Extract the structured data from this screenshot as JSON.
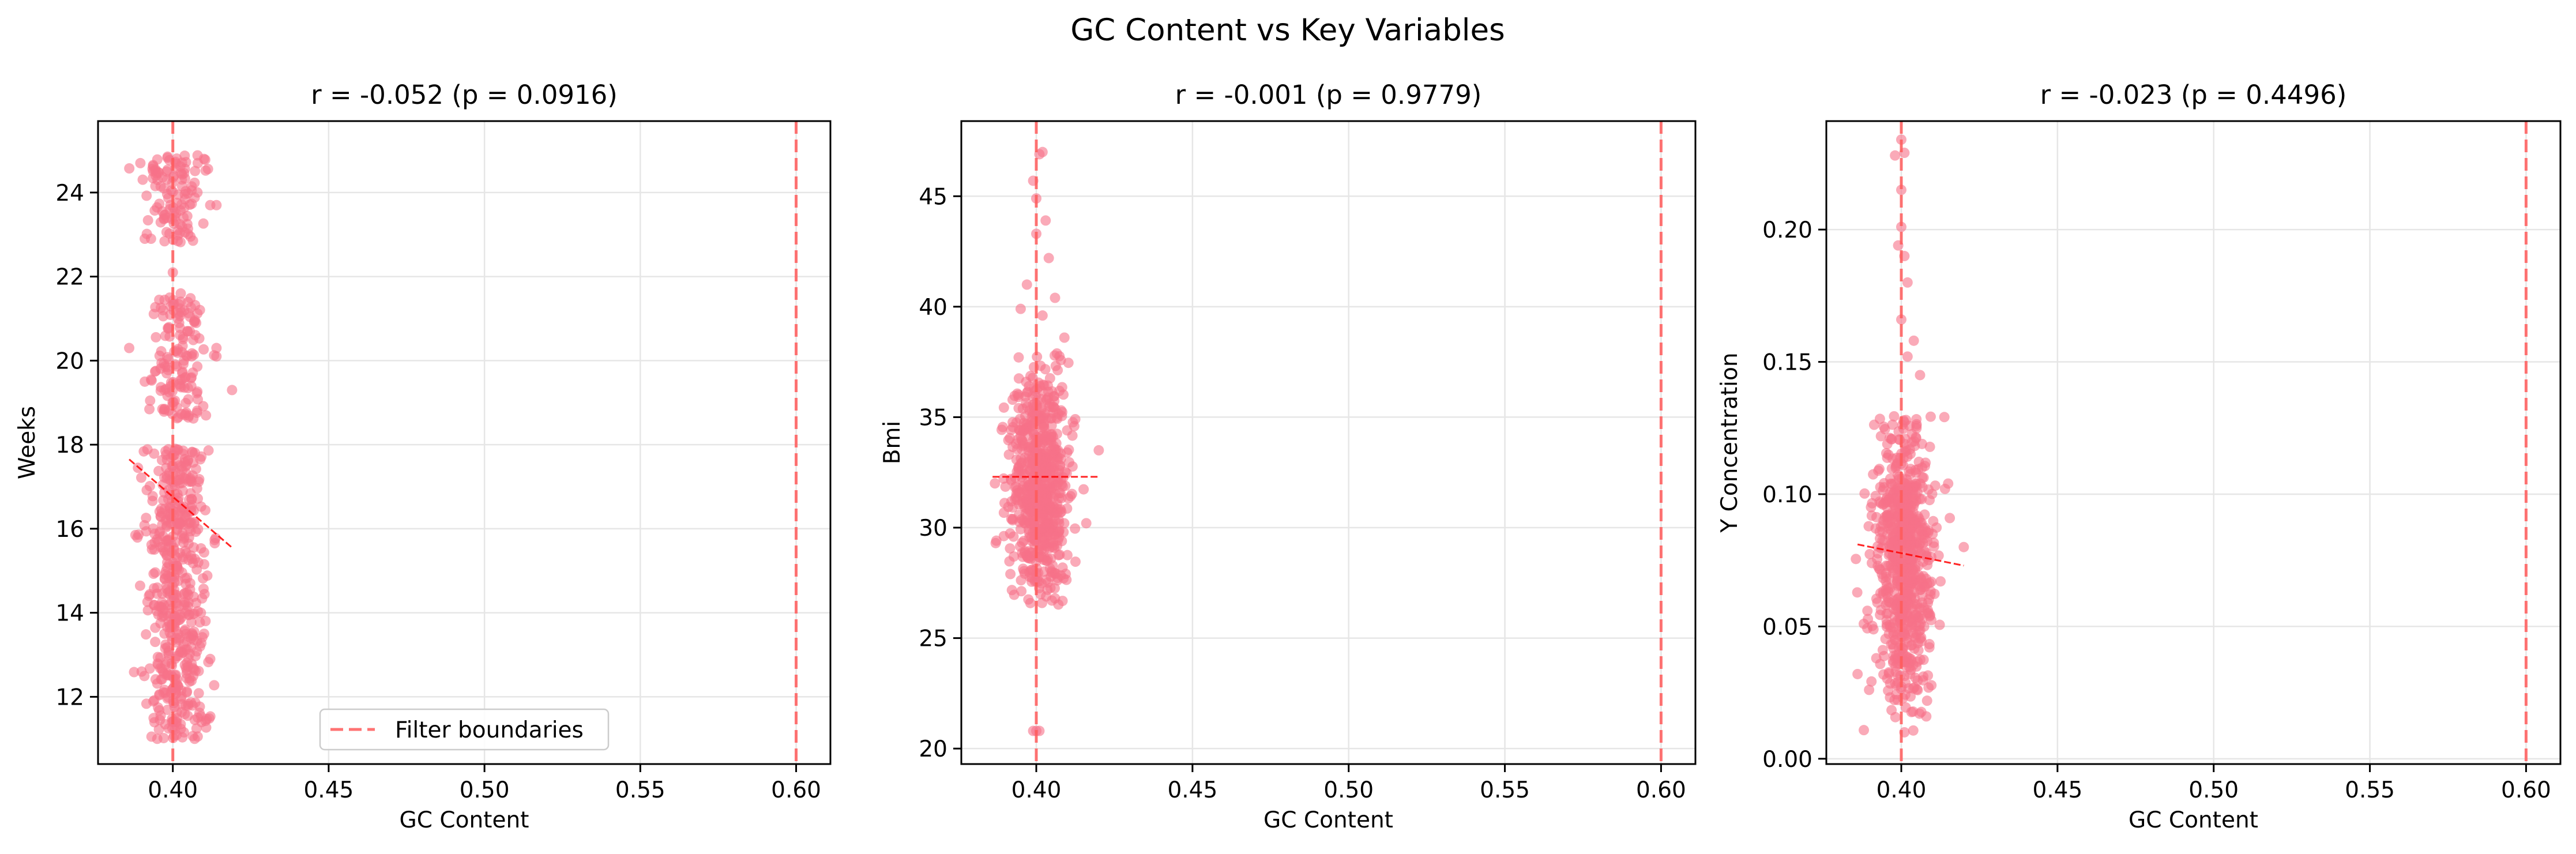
{
  "figure": {
    "title": "GC Content vs Key Variables",
    "point_color": "#f77189",
    "boundary_color": "#ff5a5a",
    "trend_color": "#ff0000",
    "legend": {
      "label": "Filter boundaries",
      "placement": "lower-center",
      "panel": 0
    }
  },
  "chart_data": [
    {
      "type": "scatter",
      "title": "r = -0.052 (p = 0.0916)",
      "xlabel": "GC Content",
      "ylabel": "Weeks",
      "xlim": [
        0.376,
        0.611
      ],
      "ylim": [
        10.4,
        25.7
      ],
      "xticks": [
        0.4,
        0.45,
        0.5,
        0.55,
        0.6
      ],
      "xtick_labels": [
        "0.40",
        "0.45",
        "0.50",
        "0.55",
        "0.60"
      ],
      "yticks": [
        12,
        14,
        16,
        18,
        20,
        22,
        24
      ],
      "ytick_labels": [
        "12",
        "14",
        "16",
        "18",
        "20",
        "22",
        "24"
      ],
      "grid": true,
      "filter_boundaries": [
        0.4,
        0.6
      ],
      "trend": {
        "x": [
          0.386,
          0.419
        ],
        "y": [
          17.65,
          15.55
        ]
      },
      "clusters": [
        {
          "x_mean": 0.401,
          "x_sd": 0.0045,
          "y_min": 11.0,
          "y_max": 17.9,
          "n": 520
        },
        {
          "x_mean": 0.402,
          "x_sd": 0.0045,
          "y_min": 18.6,
          "y_max": 21.6,
          "n": 140
        },
        {
          "x_mean": 0.401,
          "x_sd": 0.0045,
          "y_min": 22.8,
          "y_max": 24.9,
          "n": 110
        }
      ],
      "points": [
        [
          0.386,
          20.3
        ],
        [
          0.388,
          15.85
        ],
        [
          0.39,
          12.6
        ],
        [
          0.391,
          22.9
        ],
        [
          0.393,
          22.9
        ],
        [
          0.399,
          21.5
        ],
        [
          0.4,
          22.1
        ],
        [
          0.419,
          19.3
        ],
        [
          0.414,
          20.3
        ],
        [
          0.414,
          20.1
        ],
        [
          0.412,
          23.7
        ],
        [
          0.414,
          23.7
        ],
        [
          0.412,
          12.9
        ],
        [
          0.408,
          24.7
        ],
        [
          0.41,
          24.8
        ],
        [
          0.395,
          11.0
        ],
        [
          0.407,
          11.0
        ],
        [
          0.391,
          19.5
        ],
        [
          0.404,
          13.6
        ],
        [
          0.398,
          24.5
        ]
      ]
    },
    {
      "type": "scatter",
      "title": "r = -0.001 (p = 0.9779)",
      "xlabel": "GC Content",
      "ylabel": "Bmi",
      "xlim": [
        0.376,
        0.611
      ],
      "ylim": [
        19.3,
        48.4
      ],
      "xticks": [
        0.4,
        0.45,
        0.5,
        0.55,
        0.6
      ],
      "xtick_labels": [
        "0.40",
        "0.45",
        "0.50",
        "0.55",
        "0.60"
      ],
      "yticks": [
        20,
        25,
        30,
        35,
        40,
        45
      ],
      "ytick_labels": [
        "20",
        "25",
        "30",
        "35",
        "40",
        "45"
      ],
      "grid": true,
      "filter_boundaries": [
        0.4,
        0.6
      ],
      "trend": {
        "x": [
          0.386,
          0.42
        ],
        "y": [
          32.3,
          32.3
        ]
      },
      "clusters": [
        {
          "x_mean": 0.401,
          "x_sd": 0.0045,
          "y_mean": 32.0,
          "y_sd": 2.6,
          "y_min": 26.5,
          "y_max": 38.0,
          "n": 700
        }
      ],
      "points": [
        [
          0.399,
          20.8
        ],
        [
          0.4,
          20.8
        ],
        [
          0.401,
          20.8
        ],
        [
          0.402,
          47.0
        ],
        [
          0.401,
          46.9
        ],
        [
          0.399,
          45.7
        ],
        [
          0.4,
          44.9
        ],
        [
          0.403,
          43.9
        ],
        [
          0.4,
          43.3
        ],
        [
          0.404,
          42.2
        ],
        [
          0.397,
          41.0
        ],
        [
          0.406,
          40.4
        ],
        [
          0.402,
          39.6
        ],
        [
          0.395,
          39.9
        ],
        [
          0.42,
          33.5
        ],
        [
          0.387,
          29.3
        ],
        [
          0.416,
          30.2
        ],
        [
          0.405,
          26.7
        ],
        [
          0.406,
          26.8
        ],
        [
          0.409,
          38.6
        ]
      ]
    },
    {
      "type": "scatter",
      "title": "r = -0.023 (p = 0.4496)",
      "xlabel": "GC Content",
      "ylabel": "Y Concentration",
      "xlim": [
        0.376,
        0.611
      ],
      "ylim": [
        -0.002,
        0.241
      ],
      "xticks": [
        0.4,
        0.45,
        0.5,
        0.55,
        0.6
      ],
      "xtick_labels": [
        "0.40",
        "0.45",
        "0.50",
        "0.55",
        "0.60"
      ],
      "yticks": [
        0.0,
        0.05,
        0.1,
        0.15,
        0.2
      ],
      "ytick_labels": [
        "0.00",
        "0.05",
        "0.10",
        "0.15",
        "0.20"
      ],
      "grid": true,
      "filter_boundaries": [
        0.4,
        0.6
      ],
      "trend": {
        "x": [
          0.386,
          0.42
        ],
        "y": [
          0.081,
          0.073
        ]
      },
      "clusters": [
        {
          "x_mean": 0.401,
          "x_sd": 0.0045,
          "y_mean": 0.075,
          "y_sd": 0.026,
          "y_min": 0.01,
          "y_max": 0.13,
          "n": 750
        }
      ],
      "points": [
        [
          0.4,
          0.234
        ],
        [
          0.401,
          0.229
        ],
        [
          0.398,
          0.228
        ],
        [
          0.4,
          0.215
        ],
        [
          0.4,
          0.201
        ],
        [
          0.399,
          0.194
        ],
        [
          0.401,
          0.19
        ],
        [
          0.402,
          0.18
        ],
        [
          0.4,
          0.166
        ],
        [
          0.404,
          0.158
        ],
        [
          0.402,
          0.152
        ],
        [
          0.406,
          0.145
        ],
        [
          0.42,
          0.08
        ],
        [
          0.386,
          0.032
        ],
        [
          0.388,
          0.051
        ],
        [
          0.414,
          0.102
        ],
        [
          0.415,
          0.104
        ],
        [
          0.392,
          0.038
        ],
        [
          0.401,
          0.01
        ],
        [
          0.408,
          0.016
        ]
      ]
    }
  ]
}
